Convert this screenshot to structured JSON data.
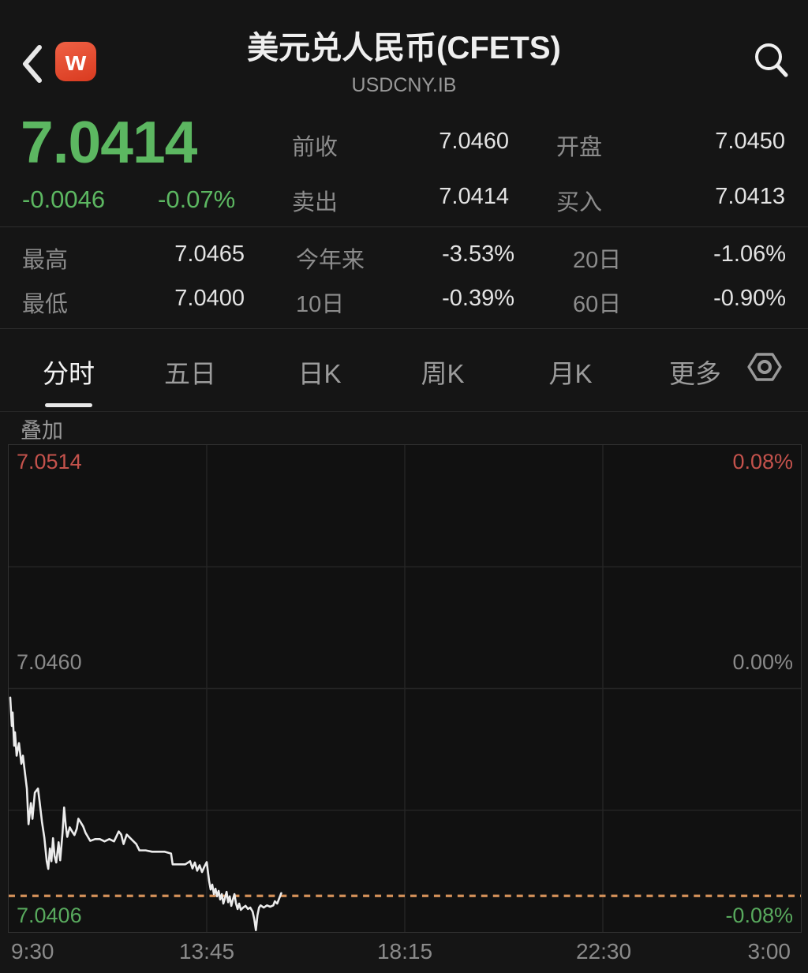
{
  "header": {
    "title": "美元兑人民币(CFETS)",
    "subtitle": "USDCNY.IB",
    "logo_letter": "w"
  },
  "quote": {
    "last_price": "7.0414",
    "change": "-0.0046",
    "change_pct": "-0.07%",
    "fields": [
      {
        "label": "前收",
        "value": "7.0460"
      },
      {
        "label": "开盘",
        "value": "7.0450"
      },
      {
        "label": "卖出",
        "value": "7.0414"
      },
      {
        "label": "买入",
        "value": "7.0413"
      }
    ]
  },
  "stats": {
    "fields": [
      {
        "label": "最高",
        "value": "7.0465"
      },
      {
        "label": "今年来",
        "value": "-3.53%"
      },
      {
        "label": "20日",
        "value": "-1.06%"
      },
      {
        "label": "最低",
        "value": "7.0400"
      },
      {
        "label": "10日",
        "value": "-0.39%"
      },
      {
        "label": "60日",
        "value": "-0.90%"
      }
    ]
  },
  "tabs": {
    "items": [
      "分时",
      "五日",
      "日K",
      "周K",
      "月K",
      "更多"
    ],
    "active": "分时"
  },
  "overlay_label": "叠加",
  "colors": {
    "price_up_red": "#c4524c",
    "price_down_green": "#5cb761",
    "neutral_gray": "#8a8a8a",
    "logo_orange": "#e04f33",
    "price_line": "#ececec",
    "last_price_dotted": "#d4915a"
  },
  "chart_data": {
    "type": "line",
    "x_ticks": [
      "9:30",
      "13:45",
      "18:15",
      "22:30",
      "3:00"
    ],
    "y_left_labels": [
      "7.0514",
      "7.0460",
      "7.0406"
    ],
    "y_right_labels": [
      "0.08%",
      "0.00%",
      "-0.08%"
    ],
    "ylim": [
      7.0406,
      7.0514
    ],
    "prev_close": 7.046,
    "last_price": 7.0414,
    "grid": true,
    "series": [
      {
        "name": "USDCNY.IB intraday",
        "points": [
          [
            0.002,
            7.0458
          ],
          [
            0.004,
            7.04517
          ],
          [
            0.005,
            7.04547
          ],
          [
            0.007,
            7.04473
          ],
          [
            0.008,
            7.04503
          ],
          [
            0.01,
            7.04451
          ],
          [
            0.013,
            7.04479
          ],
          [
            0.016,
            7.04433
          ],
          [
            0.018,
            7.04451
          ],
          [
            0.02,
            7.04421
          ],
          [
            0.023,
            7.04378
          ],
          [
            0.025,
            7.04299
          ],
          [
            0.028,
            7.04346
          ],
          [
            0.03,
            7.04311
          ],
          [
            0.033,
            7.04369
          ],
          [
            0.037,
            7.04378
          ],
          [
            0.039,
            7.0435
          ],
          [
            0.042,
            7.04304
          ],
          [
            0.045,
            7.04269
          ],
          [
            0.048,
            7.04217
          ],
          [
            0.05,
            7.042
          ],
          [
            0.052,
            7.04245
          ],
          [
            0.054,
            7.04217
          ],
          [
            0.056,
            7.04268
          ],
          [
            0.058,
            7.04228
          ],
          [
            0.06,
            7.04214
          ],
          [
            0.063,
            7.04259
          ],
          [
            0.065,
            7.04219
          ],
          [
            0.068,
            7.0428
          ],
          [
            0.07,
            7.04336
          ],
          [
            0.072,
            7.04297
          ],
          [
            0.074,
            7.04271
          ],
          [
            0.077,
            7.04292
          ],
          [
            0.08,
            7.04283
          ],
          [
            0.083,
            7.04275
          ],
          [
            0.086,
            7.04289
          ],
          [
            0.088,
            7.04311
          ],
          [
            0.091,
            7.04303
          ],
          [
            0.094,
            7.04294
          ],
          [
            0.097,
            7.0428
          ],
          [
            0.1,
            7.04271
          ],
          [
            0.103,
            7.04262
          ],
          [
            0.109,
            7.04266
          ],
          [
            0.115,
            7.04266
          ],
          [
            0.121,
            7.04261
          ],
          [
            0.127,
            7.04266
          ],
          [
            0.133,
            7.04261
          ],
          [
            0.139,
            7.04283
          ],
          [
            0.142,
            7.04276
          ],
          [
            0.145,
            7.04255
          ],
          [
            0.149,
            7.04276
          ],
          [
            0.153,
            7.04269
          ],
          [
            0.157,
            7.04262
          ],
          [
            0.161,
            7.04255
          ],
          [
            0.165,
            7.04241
          ],
          [
            0.173,
            7.04241
          ],
          [
            0.181,
            7.04238
          ],
          [
            0.189,
            7.04238
          ],
          [
            0.197,
            7.04238
          ],
          [
            0.205,
            7.04234
          ],
          [
            0.207,
            7.0421
          ],
          [
            0.215,
            7.0421
          ],
          [
            0.223,
            7.0421
          ],
          [
            0.229,
            7.04217
          ],
          [
            0.232,
            7.04201
          ],
          [
            0.235,
            7.04214
          ],
          [
            0.238,
            7.04196
          ],
          [
            0.241,
            7.04208
          ],
          [
            0.244,
            7.04193
          ],
          [
            0.247,
            7.04205
          ],
          [
            0.25,
            7.04215
          ],
          [
            0.252,
            7.04187
          ],
          [
            0.253,
            7.04173
          ],
          [
            0.255,
            7.04154
          ],
          [
            0.257,
            7.04165
          ],
          [
            0.259,
            7.04144
          ],
          [
            0.261,
            7.04156
          ],
          [
            0.263,
            7.04139
          ],
          [
            0.265,
            7.04151
          ],
          [
            0.267,
            7.04132
          ],
          [
            0.269,
            7.04144
          ],
          [
            0.271,
            7.04123
          ],
          [
            0.273,
            7.04135
          ],
          [
            0.275,
            7.04149
          ],
          [
            0.277,
            7.04126
          ],
          [
            0.279,
            7.04139
          ],
          [
            0.281,
            7.04118
          ],
          [
            0.283,
            7.04132
          ],
          [
            0.285,
            7.04144
          ],
          [
            0.287,
            7.04123
          ],
          [
            0.289,
            7.04111
          ],
          [
            0.291,
            7.04123
          ],
          [
            0.293,
            7.04109
          ],
          [
            0.296,
            7.04114
          ],
          [
            0.299,
            7.04118
          ],
          [
            0.302,
            7.04111
          ],
          [
            0.305,
            7.04114
          ],
          [
            0.308,
            7.04105
          ],
          [
            0.31,
            7.04088
          ],
          [
            0.312,
            7.04064
          ],
          [
            0.314,
            7.04097
          ],
          [
            0.316,
            7.04114
          ],
          [
            0.318,
            7.04119
          ],
          [
            0.322,
            7.04114
          ],
          [
            0.326,
            7.04119
          ],
          [
            0.33,
            7.04116
          ],
          [
            0.334,
            7.04119
          ],
          [
            0.336,
            7.04128
          ],
          [
            0.339,
            7.04123
          ],
          [
            0.342,
            7.04137
          ],
          [
            0.344,
            7.04146
          ]
        ]
      }
    ]
  }
}
